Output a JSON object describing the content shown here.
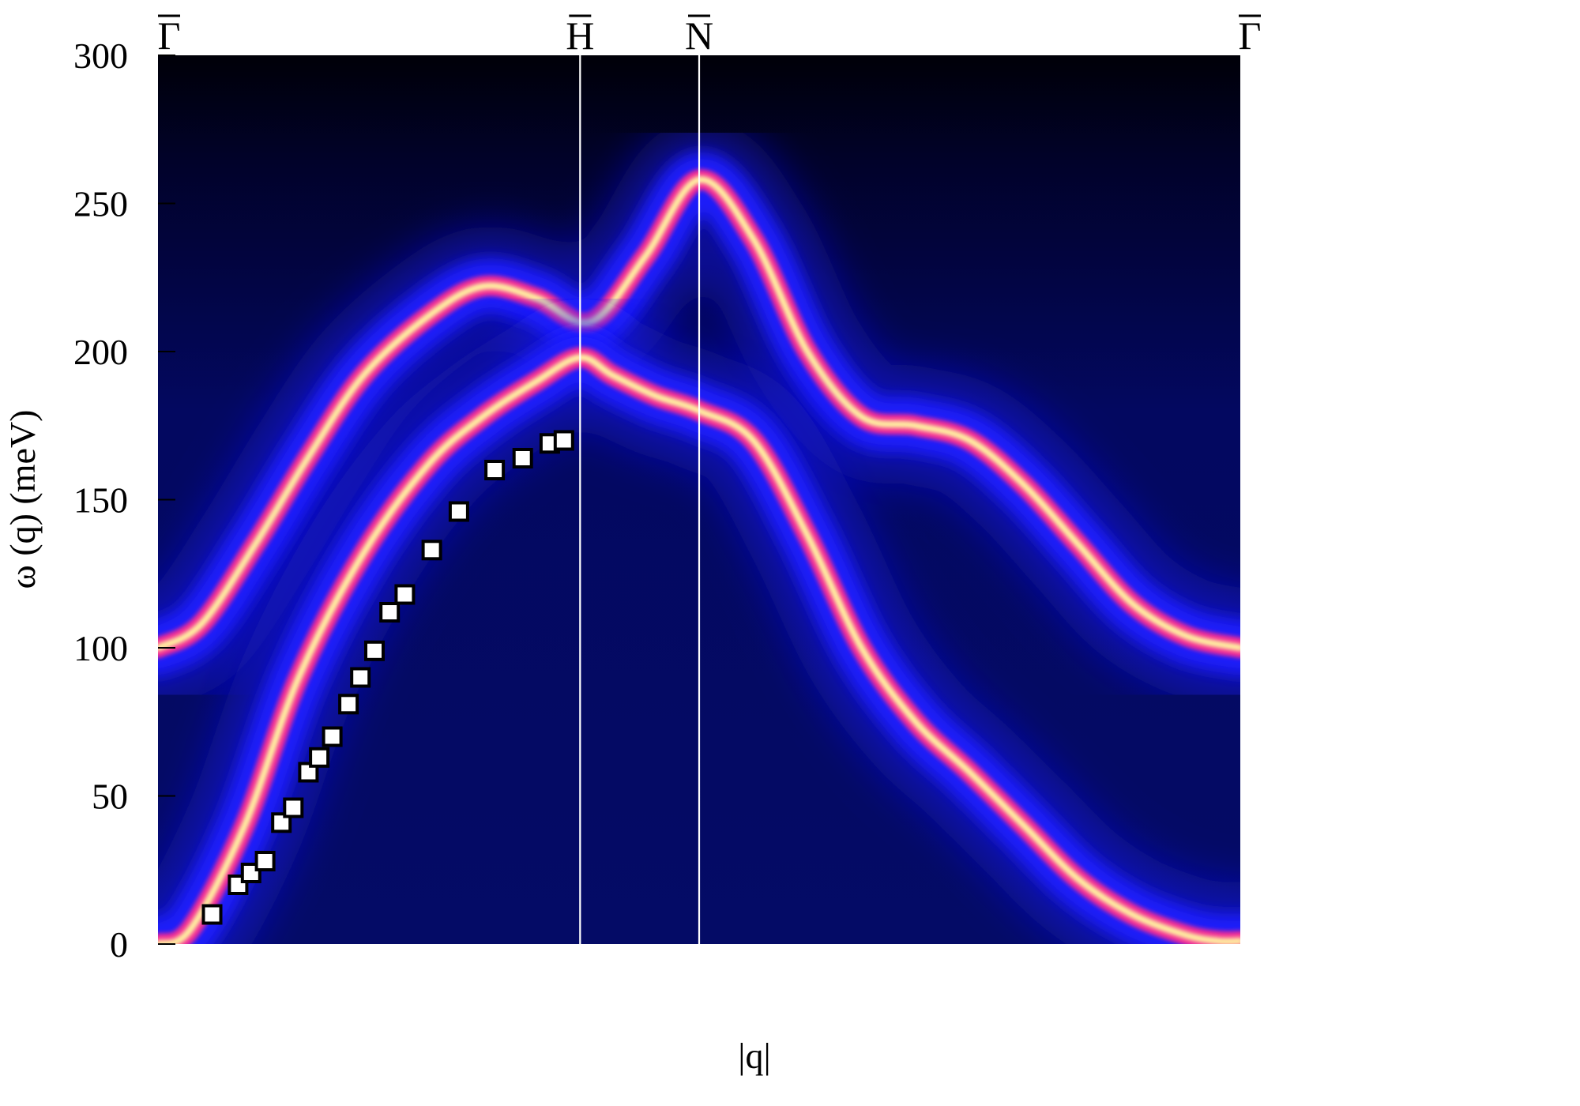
{
  "chart_data": {
    "type": "heatmap",
    "title": "",
    "xlabel": "|q|",
    "ylabel": "ω (q) (meV)",
    "ylim": [
      0,
      300
    ],
    "yticks": [
      0,
      50,
      100,
      150,
      200,
      250,
      300
    ],
    "high_symmetry_points": [
      "Γ",
      "H",
      "N",
      "Γ"
    ],
    "grid": false,
    "legend": "none",
    "colors": {
      "background": "#000010",
      "field": "#040a5c",
      "glow": "#1a1aff",
      "core": "#ff2d8f",
      "peak": "#fff6a0",
      "divider": "#ffffff"
    },
    "series": [
      {
        "kind": "intensity-band",
        "x": [
          0.0,
          0.04,
          0.09,
          0.14,
          0.19,
          0.25,
          0.3,
          0.35,
          0.4,
          0.45,
          0.5,
          0.55,
          0.6,
          0.65,
          0.7,
          0.75,
          0.8,
          0.85,
          0.9,
          0.95,
          1.0
        ],
        "y": [
          100,
          108,
          135,
          165,
          192,
          212,
          222,
          218,
          210,
          232,
          258,
          238,
          200,
          178,
          175,
          170,
          155,
          135,
          115,
          104,
          100
        ]
      },
      {
        "kind": "intensity-band",
        "x": [
          0.0,
          0.03,
          0.08,
          0.13,
          0.19,
          0.25,
          0.3,
          0.35,
          0.39,
          0.42,
          0.46,
          0.5,
          0.55,
          0.6,
          0.65,
          0.7,
          0.75,
          0.8,
          0.85,
          0.9,
          0.95,
          0.98,
          1.0
        ],
        "y": [
          0,
          5,
          40,
          90,
          132,
          162,
          178,
          190,
          198,
          192,
          185,
          180,
          170,
          138,
          100,
          75,
          58,
          40,
          22,
          10,
          3,
          1,
          1
        ]
      },
      {
        "kind": "markers",
        "x": [
          0.05,
          0.074,
          0.086,
          0.099,
          0.114,
          0.125,
          0.139,
          0.149,
          0.161,
          0.176,
          0.187,
          0.2,
          0.214,
          0.228,
          0.253,
          0.278,
          0.311,
          0.337,
          0.362,
          0.375
        ],
        "y": [
          10,
          20,
          24,
          28,
          41,
          46,
          58,
          63,
          70,
          81,
          90,
          99,
          112,
          118,
          133,
          146,
          160,
          164,
          169,
          170
        ]
      }
    ]
  }
}
